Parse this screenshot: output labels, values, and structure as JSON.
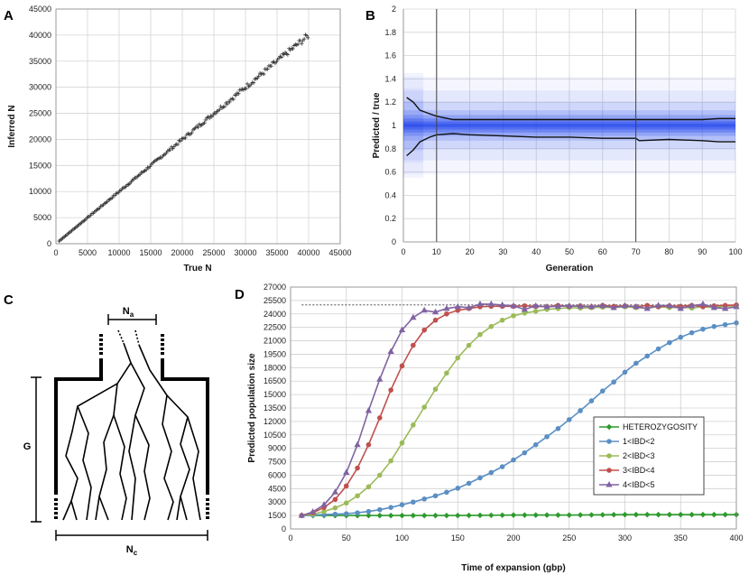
{
  "chart_data": [
    {
      "panel": "A",
      "type": "scatter",
      "xlabel": "True N",
      "ylabel": "Inferred N",
      "xlim": [
        0,
        45000
      ],
      "ylim": [
        0,
        45000
      ],
      "xticks": [
        0,
        5000,
        10000,
        15000,
        20000,
        25000,
        30000,
        35000,
        40000,
        45000
      ],
      "yticks": [
        0,
        5000,
        10000,
        15000,
        20000,
        25000,
        30000,
        35000,
        40000,
        45000
      ],
      "marker": "+",
      "series": [
        {
          "name": "inferred",
          "start": 500,
          "end": 40000,
          "step": 200,
          "relative_noise": 0.015
        }
      ]
    },
    {
      "panel": "B",
      "type": "line",
      "xlabel": "Generation",
      "ylabel": "Predicted / true",
      "xlim": [
        0,
        100
      ],
      "ylim": [
        0,
        2
      ],
      "xticks": [
        0,
        10,
        20,
        30,
        40,
        50,
        60,
        70,
        80,
        90,
        100
      ],
      "yticks": [
        0,
        0.2,
        0.4,
        0.6,
        0.8,
        1,
        1.2,
        1.4,
        1.6,
        1.8,
        2
      ],
      "yticklabels": [
        "0",
        "0.2",
        "0.4",
        "0.6",
        "0.8",
        "1",
        "1.2",
        "1.4",
        "1.6",
        "1.8",
        "2"
      ],
      "vlines": [
        10,
        70
      ],
      "band_color": "#2244ee",
      "series": [
        {
          "name": "upper",
          "x": [
            1,
            3,
            5,
            8,
            10,
            15,
            20,
            30,
            40,
            50,
            60,
            70,
            80,
            90,
            95,
            100
          ],
          "values": [
            1.24,
            1.2,
            1.13,
            1.1,
            1.08,
            1.05,
            1.05,
            1.05,
            1.05,
            1.05,
            1.05,
            1.05,
            1.05,
            1.05,
            1.06,
            1.06
          ]
        },
        {
          "name": "lower",
          "x": [
            1,
            3,
            5,
            8,
            10,
            15,
            20,
            30,
            40,
            50,
            60,
            70,
            71,
            80,
            90,
            95,
            100
          ],
          "values": [
            0.74,
            0.79,
            0.86,
            0.9,
            0.92,
            0.93,
            0.92,
            0.91,
            0.9,
            0.9,
            0.89,
            0.89,
            0.87,
            0.88,
            0.87,
            0.86,
            0.86
          ]
        }
      ]
    },
    {
      "panel": "D",
      "type": "line",
      "xlabel": "Time of expansion (gbp)",
      "ylabel": "Predicted population size",
      "xlim": [
        0,
        400
      ],
      "ylim": [
        0,
        27000
      ],
      "xticks": [
        0,
        50,
        100,
        150,
        200,
        250,
        300,
        350,
        400
      ],
      "yticks": [
        0,
        1500,
        3000,
        4500,
        6000,
        7500,
        9000,
        10500,
        12000,
        13500,
        15000,
        16500,
        18000,
        19500,
        21000,
        22500,
        24000,
        25500,
        27000
      ],
      "yticklabels": [
        "0",
        "1500",
        "3000",
        "4500",
        "6000",
        "7500",
        "9000",
        "10500",
        "12000",
        "13500",
        "15000",
        "16500",
        "18000",
        "19500",
        "21000",
        "22500",
        "24000",
        "25500",
        "27000"
      ],
      "reference_line": {
        "x": [
          10,
          400
        ],
        "value": 25000
      },
      "series": [
        {
          "name": "HETEROZYGOSITY",
          "color": "#2e9a2e",
          "marker": "diamond",
          "x": [
            10,
            50,
            100,
            150,
            200,
            250,
            300,
            350,
            400
          ],
          "values": [
            1500,
            1500,
            1500,
            1500,
            1550,
            1550,
            1600,
            1600,
            1600
          ]
        },
        {
          "name": "1<IBD<2",
          "color": "#5b8fc4",
          "marker": "circle",
          "x": [
            10,
            20,
            30,
            40,
            50,
            60,
            70,
            80,
            90,
            100,
            110,
            120,
            130,
            140,
            150,
            160,
            170,
            180,
            190,
            200,
            210,
            220,
            230,
            240,
            250,
            260,
            270,
            280,
            290,
            300,
            310,
            320,
            330,
            340,
            350,
            360,
            370,
            380,
            390,
            400
          ],
          "values": [
            1500,
            1550,
            1600,
            1650,
            1700,
            1800,
            1950,
            2150,
            2400,
            2700,
            3000,
            3350,
            3700,
            4100,
            4550,
            5100,
            5700,
            6300,
            6950,
            7700,
            8500,
            9400,
            10300,
            11200,
            12200,
            13200,
            14300,
            15400,
            16400,
            17500,
            18500,
            19300,
            20100,
            20800,
            21400,
            21900,
            22300,
            22600,
            22800,
            23000
          ]
        },
        {
          "name": "2<IBD<3",
          "color": "#9bbb59",
          "marker": "circle",
          "x": [
            10,
            20,
            30,
            40,
            50,
            60,
            70,
            80,
            90,
            100,
            110,
            120,
            130,
            140,
            150,
            160,
            170,
            180,
            190,
            200,
            210,
            220,
            230,
            240,
            250,
            260,
            270,
            280,
            290,
            300,
            310,
            320,
            330,
            340,
            350,
            360,
            370,
            380,
            390,
            400
          ],
          "values": [
            1500,
            1650,
            1950,
            2350,
            2900,
            3700,
            4700,
            6000,
            7600,
            9600,
            11600,
            13600,
            15600,
            17400,
            19100,
            20500,
            21700,
            22600,
            23300,
            23800,
            24100,
            24300,
            24500,
            24600,
            24700,
            24650,
            24700,
            24750,
            24700,
            24800,
            24700,
            24650,
            24800,
            24700,
            24750,
            24650,
            24800,
            24700,
            24850,
            24900
          ]
        },
        {
          "name": "3<IBD<4",
          "color": "#c0504d",
          "marker": "circle",
          "x": [
            10,
            20,
            30,
            40,
            50,
            60,
            70,
            80,
            90,
            100,
            110,
            120,
            130,
            140,
            150,
            160,
            170,
            180,
            190,
            200,
            210,
            220,
            230,
            240,
            250,
            260,
            270,
            280,
            290,
            300,
            310,
            320,
            330,
            340,
            350,
            360,
            370,
            380,
            390,
            400
          ],
          "values": [
            1500,
            1800,
            2400,
            3300,
            4800,
            6800,
            9400,
            12400,
            15500,
            18200,
            20500,
            22200,
            23300,
            24000,
            24400,
            24600,
            24800,
            24850,
            24850,
            24850,
            24900,
            24850,
            24800,
            24950,
            24850,
            24900,
            24800,
            24950,
            24850,
            24900,
            24800,
            24950,
            24800,
            24900,
            24850,
            24950,
            24800,
            24900,
            24950,
            25000
          ]
        },
        {
          "name": "4<IBD<5",
          "color": "#8064a2",
          "marker": "triangle",
          "x": [
            10,
            20,
            30,
            40,
            50,
            60,
            70,
            80,
            90,
            100,
            110,
            120,
            130,
            140,
            150,
            160,
            170,
            180,
            190,
            200,
            210,
            220,
            230,
            240,
            250,
            260,
            270,
            280,
            290,
            300,
            310,
            320,
            330,
            340,
            350,
            360,
            370,
            380,
            390,
            400
          ],
          "values": [
            1500,
            1900,
            2700,
            4100,
            6300,
            9400,
            13200,
            16700,
            19800,
            22200,
            23600,
            24400,
            24200,
            24600,
            24800,
            24700,
            25100,
            25100,
            25000,
            24900,
            24500,
            24900,
            24800,
            24850,
            24900,
            24850,
            24800,
            24900,
            24700,
            24900,
            24800,
            24600,
            24950,
            24900,
            24600,
            24900,
            25100,
            24700,
            24600,
            24800
          ]
        }
      ]
    }
  ],
  "panels": {
    "a_label": "A",
    "b_label": "B",
    "c_label": "C",
    "d_label": "D"
  },
  "diagram": {
    "top_label": "N",
    "top_label_sub": "a",
    "bottom_label": "N",
    "bottom_label_sub": "c",
    "side_label": "G"
  }
}
